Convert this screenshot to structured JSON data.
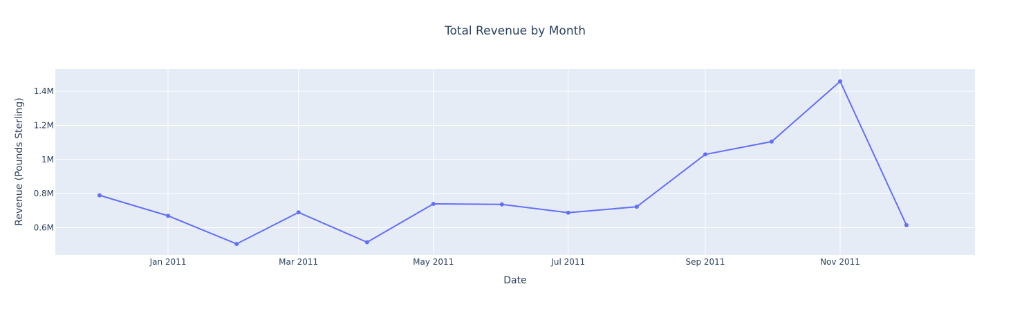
{
  "chart_data": {
    "type": "line",
    "title": "Total Revenue by Month",
    "xlabel": "Date",
    "ylabel": "Revenue (Pounds Sterling)",
    "x": [
      "2010-12-01",
      "2011-01-01",
      "2011-02-01",
      "2011-03-01",
      "2011-04-01",
      "2011-05-01",
      "2011-06-01",
      "2011-07-01",
      "2011-08-01",
      "2011-09-01",
      "2011-10-01",
      "2011-11-01",
      "2011-12-01"
    ],
    "y": [
      790000,
      670000,
      505000,
      690000,
      515000,
      740000,
      737000,
      688000,
      723000,
      1030000,
      1105000,
      1458000,
      615000
    ],
    "xlim": [
      "2010-11-11",
      "2012-01-01"
    ],
    "ylim": [
      440000,
      1530000
    ],
    "xticks": [
      {
        "date": "2011-01-01",
        "label": "Jan 2011"
      },
      {
        "date": "2011-03-01",
        "label": "Mar 2011"
      },
      {
        "date": "2011-05-01",
        "label": "May 2011"
      },
      {
        "date": "2011-07-01",
        "label": "Jul 2011"
      },
      {
        "date": "2011-09-01",
        "label": "Sep 2011"
      },
      {
        "date": "2011-11-01",
        "label": "Nov 2011"
      }
    ],
    "yticks": [
      {
        "value": 600000,
        "label": "0.6M"
      },
      {
        "value": 800000,
        "label": "0.8M"
      },
      {
        "value": 1000000,
        "label": "1M"
      },
      {
        "value": 1200000,
        "label": "1.2M"
      },
      {
        "value": 1400000,
        "label": "1.4M"
      }
    ],
    "grid": true,
    "colors": {
      "series": "#636efa",
      "plot_bg": "#e5ecf6",
      "text": "#2a3f5f"
    }
  }
}
